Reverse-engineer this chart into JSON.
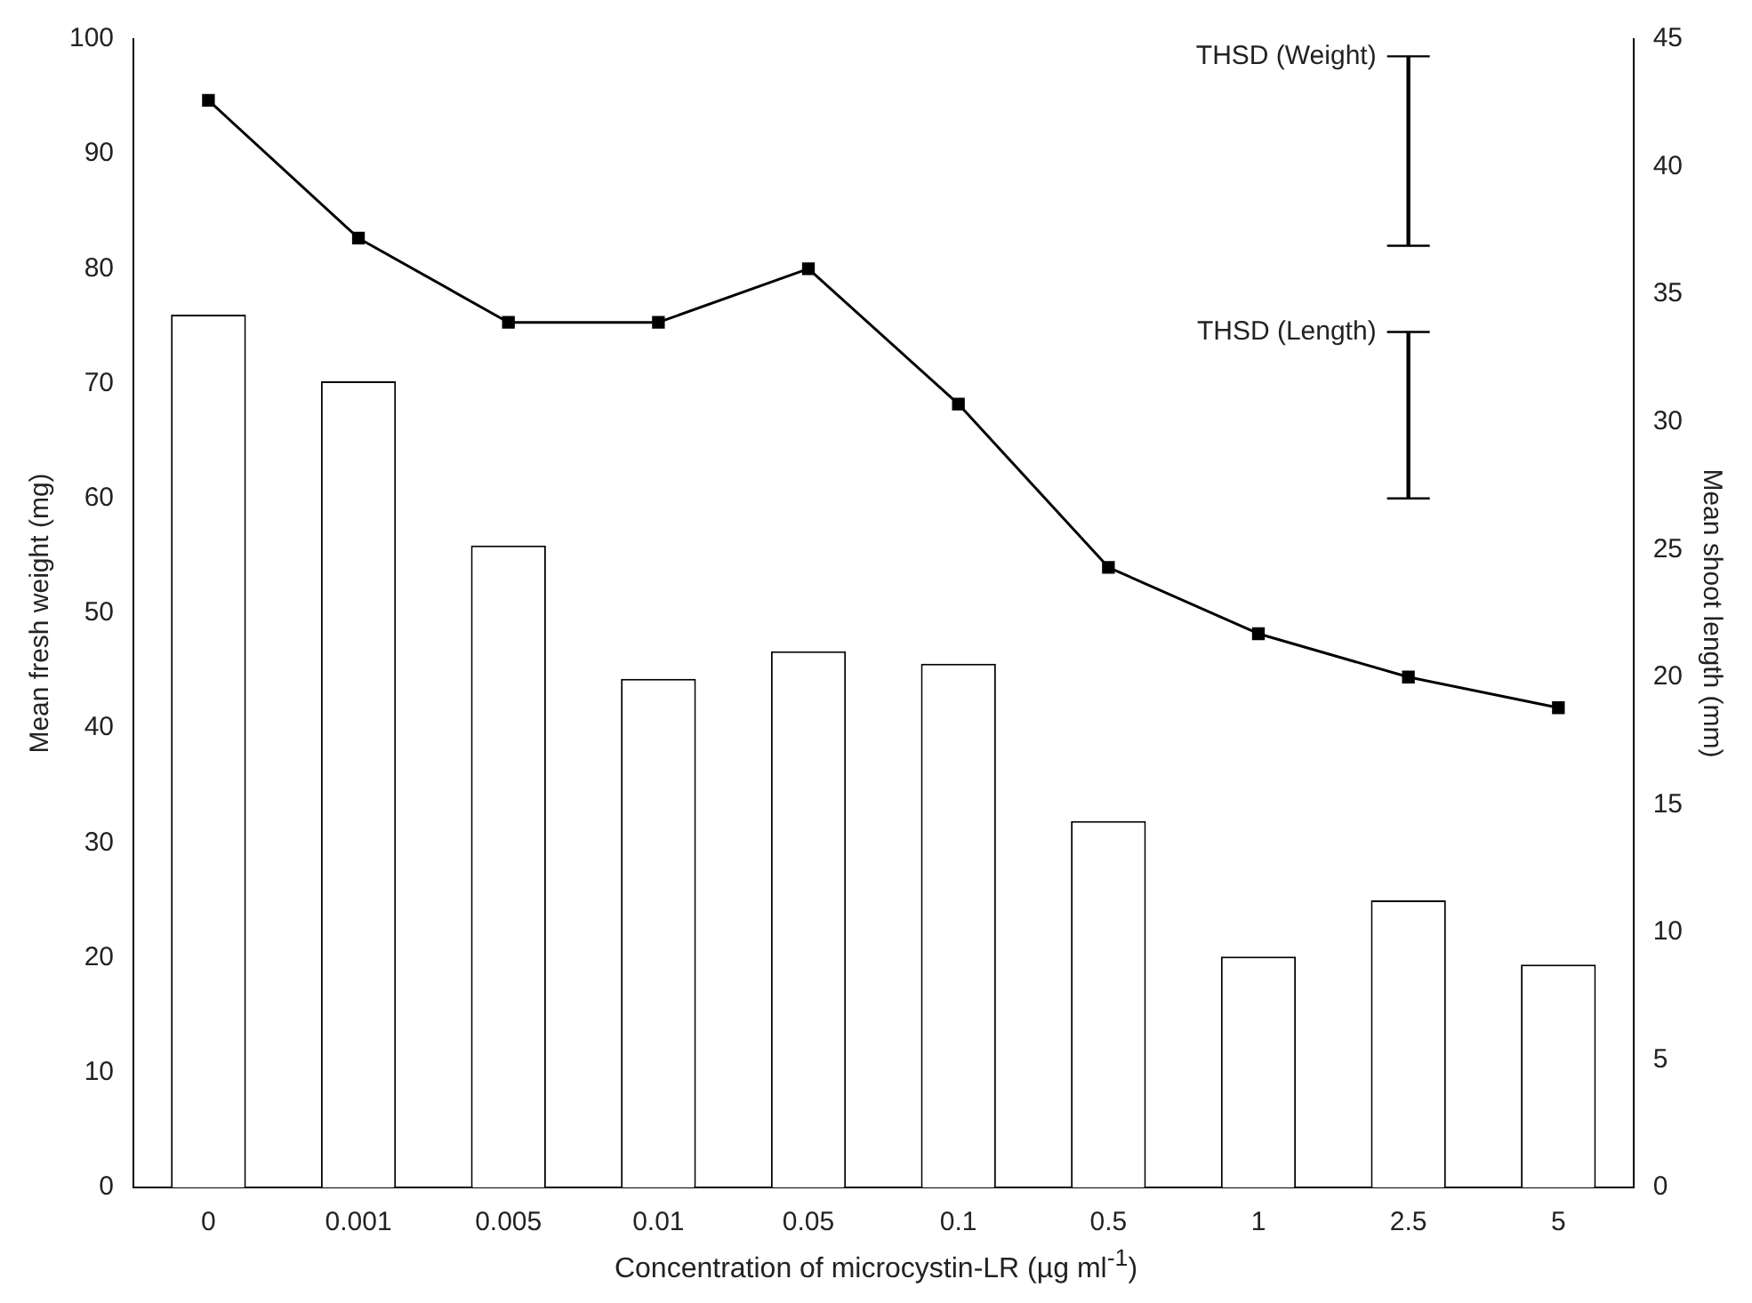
{
  "chart_data": {
    "type": "bar",
    "xlabel": "Concentration of microcystin-LR (µg ml$^{-1}$)",
    "ylabel": "Mean fresh weight (mg)",
    "y2label": "Mean shoot length (mm)",
    "categories": [
      "0",
      "0.001",
      "0.005",
      "0.01",
      "0.05",
      "0.1",
      "0.5",
      "1",
      "2.5",
      "5"
    ],
    "series": [
      {
        "color": "#ffffff",
        "values": [
          76,
          70.2,
          55.9,
          44.3,
          46.7,
          45.6,
          31.9,
          20.1,
          25,
          19.4
        ]
      },
      {
        "type": "line",
        "axis": "y2",
        "color": "#000000",
        "marker": "square",
        "line_style": "solid",
        "values": [
          42.6,
          37.2,
          33.9,
          33.9,
          36.0,
          30.7,
          24.3,
          21.7,
          20.0,
          18.8
        ]
      },
      {
        "type": "bar",
        "name": "THSD (Weight)",
        "color": "#000000",
        "x": [
          "2.5"
        ],
        "base": [
          82
        ],
        "values": [
          16.5
        ]
      },
      {
        "type": "bar",
        "name": "THSD (Length)",
        "color": "#000000",
        "x": [
          "2.5"
        ],
        "base": [
          60
        ],
        "values": [
          14.5
        ]
      }
    ],
    "ylim": [
      0,
      100
    ],
    "yticks": [
      0,
      10,
      20,
      30,
      40,
      50,
      60,
      70,
      80,
      90,
      100
    ],
    "y2lim": [
      0,
      45
    ],
    "y2ticks": [
      0,
      5,
      10,
      15,
      20,
      25,
      30,
      35,
      40,
      45
    ],
    "grid": false,
    "legend": "top right"
  }
}
